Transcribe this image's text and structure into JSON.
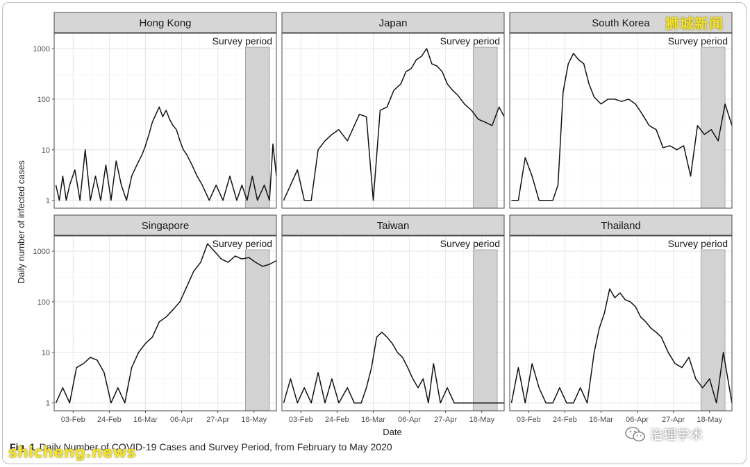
{
  "figure": {
    "caption_label": "Fig. 1",
    "caption_text": "Daily Number of COVID-19 Cases and Survey Period, from February to May 2020"
  },
  "watermarks": {
    "top_right": "狮城新闻",
    "bottom_left": "shicheng.news",
    "account": "治理学术"
  },
  "chart_data": {
    "type": "line",
    "layout": "facet-grid-2x3",
    "xlabel": "Date",
    "ylabel": "Daily number of infected cases",
    "y_scale": "log10",
    "ylim": [
      0.7,
      2000
    ],
    "y_ticks": [
      1,
      10,
      100,
      1000
    ],
    "y_tick_labels": [
      "1",
      "10",
      "100",
      "1000"
    ],
    "x_start": "2020-01-23",
    "x_end": "2020-05-31",
    "x_ticks": [
      "2020-02-03",
      "2020-02-24",
      "2020-03-16",
      "2020-04-06",
      "2020-04-27",
      "2020-05-18"
    ],
    "x_tick_labels": [
      "03-Feb",
      "24-Feb",
      "16-Mar",
      "06-Apr",
      "27-Apr",
      "18-May"
    ],
    "grid": true,
    "survey_period": {
      "label": "Survey period",
      "start": "2020-05-13",
      "end": "2020-05-27"
    },
    "panels": [
      {
        "name": "Hong Kong",
        "x": [
          "2020-01-24",
          "2020-01-26",
          "2020-01-28",
          "2020-01-30",
          "2020-02-01",
          "2020-02-04",
          "2020-02-07",
          "2020-02-10",
          "2020-02-13",
          "2020-02-16",
          "2020-02-19",
          "2020-02-22",
          "2020-02-25",
          "2020-02-28",
          "2020-03-02",
          "2020-03-05",
          "2020-03-08",
          "2020-03-11",
          "2020-03-14",
          "2020-03-16",
          "2020-03-18",
          "2020-03-20",
          "2020-03-22",
          "2020-03-24",
          "2020-03-26",
          "2020-03-28",
          "2020-03-30",
          "2020-04-01",
          "2020-04-03",
          "2020-04-05",
          "2020-04-07",
          "2020-04-09",
          "2020-04-12",
          "2020-04-15",
          "2020-04-18",
          "2020-04-22",
          "2020-04-26",
          "2020-04-30",
          "2020-05-04",
          "2020-05-08",
          "2020-05-11",
          "2020-05-14",
          "2020-05-17",
          "2020-05-20",
          "2020-05-24",
          "2020-05-27",
          "2020-05-29",
          "2020-05-31"
        ],
        "y": [
          2,
          1,
          3,
          1,
          2,
          4,
          1,
          10,
          1,
          3,
          1,
          5,
          1,
          6,
          2,
          1,
          3,
          5,
          8,
          12,
          20,
          35,
          50,
          70,
          45,
          60,
          40,
          30,
          25,
          15,
          10,
          8,
          5,
          3,
          2,
          1,
          2,
          1,
          3,
          1,
          2,
          1,
          3,
          1,
          2,
          1,
          13,
          3
        ]
      },
      {
        "name": "Japan",
        "x": [
          "2020-01-24",
          "2020-01-28",
          "2020-02-01",
          "2020-02-05",
          "2020-02-09",
          "2020-02-13",
          "2020-02-17",
          "2020-02-21",
          "2020-02-25",
          "2020-03-01",
          "2020-03-05",
          "2020-03-08",
          "2020-03-12",
          "2020-03-16",
          "2020-03-20",
          "2020-03-24",
          "2020-03-28",
          "2020-04-01",
          "2020-04-04",
          "2020-04-07",
          "2020-04-10",
          "2020-04-13",
          "2020-04-16",
          "2020-04-19",
          "2020-04-22",
          "2020-04-25",
          "2020-04-28",
          "2020-05-01",
          "2020-05-04",
          "2020-05-08",
          "2020-05-12",
          "2020-05-16",
          "2020-05-20",
          "2020-05-24",
          "2020-05-28",
          "2020-05-31"
        ],
        "y": [
          1,
          2,
          4,
          1,
          1,
          10,
          15,
          20,
          25,
          15,
          30,
          50,
          45,
          1,
          60,
          70,
          150,
          200,
          350,
          400,
          600,
          700,
          1000,
          500,
          450,
          350,
          200,
          150,
          120,
          80,
          60,
          40,
          35,
          30,
          70,
          45
        ]
      },
      {
        "name": "South Korea",
        "x": [
          "2020-01-24",
          "2020-01-28",
          "2020-02-01",
          "2020-02-05",
          "2020-02-09",
          "2020-02-13",
          "2020-02-17",
          "2020-02-20",
          "2020-02-23",
          "2020-02-26",
          "2020-02-29",
          "2020-03-03",
          "2020-03-06",
          "2020-03-09",
          "2020-03-12",
          "2020-03-16",
          "2020-03-20",
          "2020-03-24",
          "2020-03-28",
          "2020-04-01",
          "2020-04-05",
          "2020-04-09",
          "2020-04-13",
          "2020-04-17",
          "2020-04-21",
          "2020-04-25",
          "2020-04-29",
          "2020-05-03",
          "2020-05-07",
          "2020-05-11",
          "2020-05-15",
          "2020-05-19",
          "2020-05-23",
          "2020-05-27",
          "2020-05-31"
        ],
        "y": [
          1,
          1,
          7,
          3,
          1,
          1,
          1,
          2,
          140,
          500,
          800,
          600,
          500,
          200,
          110,
          80,
          100,
          100,
          90,
          100,
          80,
          50,
          30,
          25,
          11,
          12,
          10,
          12,
          3,
          30,
          20,
          25,
          15,
          80,
          30
        ]
      },
      {
        "name": "Singapore",
        "x": [
          "2020-01-24",
          "2020-01-28",
          "2020-02-01",
          "2020-02-05",
          "2020-02-09",
          "2020-02-13",
          "2020-02-17",
          "2020-02-21",
          "2020-02-25",
          "2020-02-29",
          "2020-03-04",
          "2020-03-08",
          "2020-03-12",
          "2020-03-16",
          "2020-03-20",
          "2020-03-24",
          "2020-03-28",
          "2020-04-01",
          "2020-04-05",
          "2020-04-09",
          "2020-04-13",
          "2020-04-17",
          "2020-04-21",
          "2020-04-25",
          "2020-04-29",
          "2020-05-03",
          "2020-05-07",
          "2020-05-11",
          "2020-05-15",
          "2020-05-19",
          "2020-05-23",
          "2020-05-27",
          "2020-05-31"
        ],
        "y": [
          1,
          2,
          1,
          5,
          6,
          8,
          7,
          4,
          1,
          2,
          1,
          5,
          10,
          15,
          20,
          40,
          50,
          70,
          100,
          200,
          400,
          600,
          1400,
          1000,
          700,
          600,
          800,
          700,
          750,
          600,
          500,
          550,
          650
        ]
      },
      {
        "name": "Taiwan",
        "x": [
          "2020-01-24",
          "2020-01-28",
          "2020-02-01",
          "2020-02-05",
          "2020-02-09",
          "2020-02-13",
          "2020-02-17",
          "2020-02-21",
          "2020-02-25",
          "2020-03-01",
          "2020-03-05",
          "2020-03-09",
          "2020-03-12",
          "2020-03-15",
          "2020-03-18",
          "2020-03-21",
          "2020-03-24",
          "2020-03-27",
          "2020-03-30",
          "2020-04-02",
          "2020-04-05",
          "2020-04-08",
          "2020-04-11",
          "2020-04-14",
          "2020-04-17",
          "2020-04-20",
          "2020-04-24",
          "2020-04-28",
          "2020-05-02",
          "2020-05-06",
          "2020-05-10",
          "2020-05-14",
          "2020-05-18",
          "2020-05-22",
          "2020-05-26",
          "2020-05-31"
        ],
        "y": [
          1,
          3,
          1,
          2,
          1,
          4,
          1,
          3,
          1,
          2,
          1,
          1,
          2,
          5,
          20,
          25,
          20,
          15,
          10,
          8,
          5,
          3,
          2,
          3,
          1,
          6,
          1,
          2,
          1,
          1,
          1,
          1,
          1,
          1,
          1,
          1
        ]
      },
      {
        "name": "Thailand",
        "x": [
          "2020-01-24",
          "2020-01-28",
          "2020-02-01",
          "2020-02-05",
          "2020-02-09",
          "2020-02-13",
          "2020-02-17",
          "2020-02-21",
          "2020-02-25",
          "2020-02-29",
          "2020-03-04",
          "2020-03-08",
          "2020-03-12",
          "2020-03-15",
          "2020-03-18",
          "2020-03-21",
          "2020-03-24",
          "2020-03-27",
          "2020-03-30",
          "2020-04-02",
          "2020-04-05",
          "2020-04-08",
          "2020-04-11",
          "2020-04-14",
          "2020-04-17",
          "2020-04-20",
          "2020-04-24",
          "2020-04-28",
          "2020-05-02",
          "2020-05-06",
          "2020-05-10",
          "2020-05-14",
          "2020-05-18",
          "2020-05-22",
          "2020-05-26",
          "2020-05-31"
        ],
        "y": [
          1,
          5,
          1,
          6,
          2,
          1,
          1,
          2,
          1,
          1,
          2,
          1,
          10,
          30,
          60,
          180,
          120,
          150,
          110,
          100,
          80,
          50,
          40,
          30,
          25,
          20,
          10,
          6,
          5,
          8,
          3,
          2,
          3,
          1,
          10,
          1
        ]
      }
    ]
  }
}
